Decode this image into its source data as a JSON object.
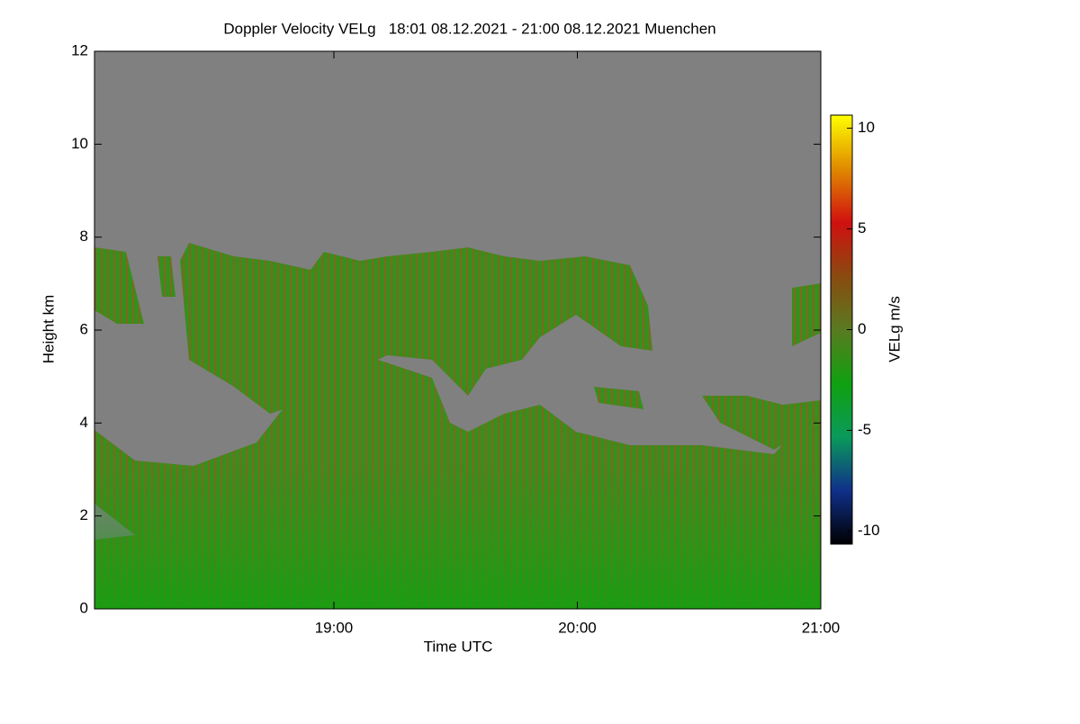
{
  "chart_data": {
    "type": "heatmap",
    "title": "Doppler Velocity VELg   18:01 08.12.2021 - 21:00 08.12.2021 Muenchen",
    "xlabel": "Time UTC",
    "ylabel": "Height km",
    "colorbar_label": "VELg m/s",
    "xlim": [
      18.0167,
      21.0
    ],
    "xticks": [
      {
        "value": 19,
        "label": "19:00"
      },
      {
        "value": 20,
        "label": "20:00"
      },
      {
        "value": 21,
        "label": "21:00"
      }
    ],
    "ylim": [
      0,
      12
    ],
    "yticks": [
      0,
      2,
      4,
      6,
      8,
      10,
      12
    ],
    "clim": [
      -10.65,
      10.65
    ],
    "cticks": [
      -10,
      -5,
      0,
      5,
      10
    ],
    "colormap": [
      "#000000",
      "#10308a",
      "#0a9a5a",
      "#10a010",
      "#5a7a20",
      "#8a4a10",
      "#d01010",
      "#e08a00",
      "#ffff00"
    ],
    "background": "#808080"
  }
}
